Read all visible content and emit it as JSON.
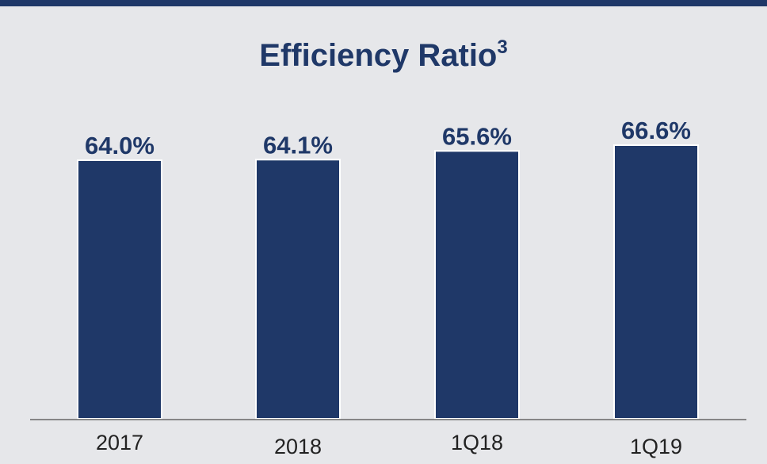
{
  "colors": {
    "background": "#e6e7ea",
    "accent": "#1f3868",
    "bar_stroke": "#ffffff",
    "axis": "#666666",
    "tick_text": "#222222"
  },
  "chart_data": {
    "type": "bar",
    "title": "Efficiency Ratio",
    "title_superscript": "3",
    "xlabel": "",
    "ylabel": "",
    "categories": [
      "2017",
      "2018",
      "1Q18",
      "1Q19"
    ],
    "values": [
      64.0,
      64.1,
      65.6,
      66.6
    ],
    "data_labels": [
      "64.0%",
      "64.1%",
      "65.6%",
      "66.6%"
    ],
    "value_unit": "%",
    "grid": false,
    "legend": "none"
  }
}
